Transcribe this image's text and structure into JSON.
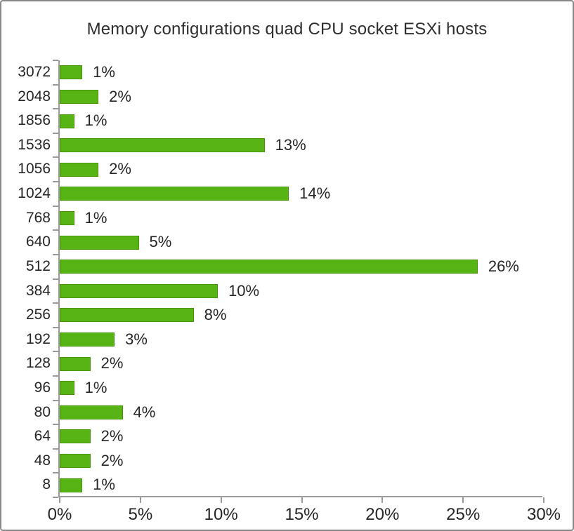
{
  "window": {
    "background": "#ffffff",
    "border_color": "#878787"
  },
  "chart_data": {
    "type": "bar",
    "orientation": "horizontal",
    "title": "Memory configurations quad CPU socket ESXi hosts",
    "categories": [
      "3072",
      "2048",
      "1856",
      "1536",
      "1056",
      "1024",
      "768",
      "640",
      "512",
      "384",
      "256",
      "192",
      "128",
      "96",
      "80",
      "64",
      "48",
      "8"
    ],
    "values": [
      1,
      2,
      1,
      13,
      2,
      14,
      1,
      5,
      26,
      10,
      8,
      3,
      2,
      1,
      4,
      2,
      2,
      1
    ],
    "value_labels": [
      "1%",
      "2%",
      "1%",
      "13%",
      "2%",
      "14%",
      "1%",
      "5%",
      "26%",
      "10%",
      "8%",
      "3%",
      "2%",
      "1%",
      "4%",
      "2%",
      "2%",
      "1%"
    ],
    "values_precise": [
      1.4,
      2.4,
      0.9,
      12.7,
      2.4,
      14.2,
      0.9,
      4.9,
      25.9,
      9.8,
      8.3,
      3.4,
      1.9,
      0.9,
      3.9,
      1.9,
      1.9,
      1.4
    ],
    "xlabel": "",
    "ylabel": "",
    "x_tick_labels": [
      "0%",
      "5%",
      "10%",
      "15%",
      "20%",
      "25%",
      "30%"
    ],
    "xlim": [
      0,
      30
    ],
    "x_tick_step": 5,
    "grid": false,
    "legend": "none",
    "bar_color": "#58b414",
    "bar_border_color": "#459708",
    "axis_color": "#9b9b9b",
    "text_color": "#262626"
  }
}
